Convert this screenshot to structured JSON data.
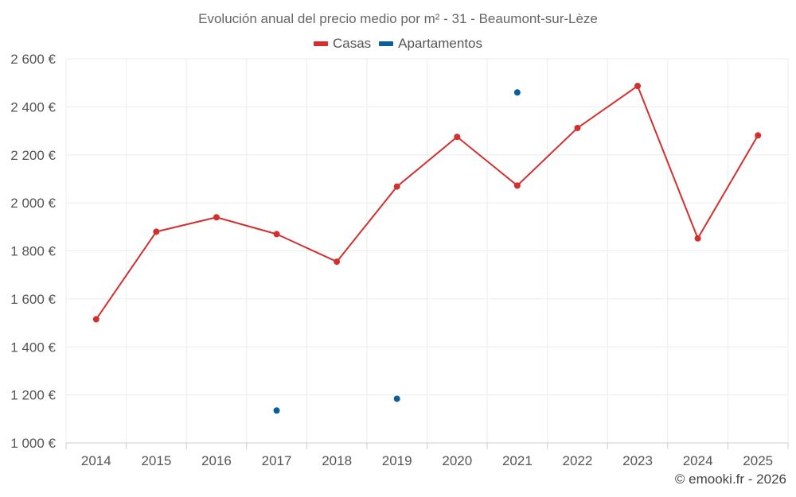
{
  "chart_data": {
    "type": "line",
    "title": "Evolución anual del precio medio por m² - 31 - Beaumont-sur-Lèze",
    "xlabel": "",
    "ylabel": "",
    "categories": [
      "2014",
      "2015",
      "2016",
      "2017",
      "2018",
      "2019",
      "2020",
      "2021",
      "2022",
      "2023",
      "2024",
      "2025"
    ],
    "ylim": [
      1000,
      2600
    ],
    "yticks": [
      1000,
      1200,
      1400,
      1600,
      1800,
      2000,
      2200,
      2400,
      2600
    ],
    "ytick_labels": [
      "1 000 €",
      "1 200 €",
      "1 400 €",
      "1 600 €",
      "1 800 €",
      "2 000 €",
      "2 200 €",
      "2 400 €",
      "2 600 €"
    ],
    "grid": true,
    "legend_position": "top",
    "series": [
      {
        "name": "Casas",
        "color": "#d32f2f",
        "line": true,
        "values": [
          1515,
          1880,
          1940,
          1870,
          1755,
          2068,
          2275,
          2072,
          2312,
          2487,
          1852,
          2281
        ]
      },
      {
        "name": "Apartamentos",
        "color": "#0a5e9a",
        "line": false,
        "values": [
          null,
          null,
          null,
          1135,
          null,
          1184,
          null,
          2460,
          null,
          null,
          null,
          null
        ]
      }
    ]
  },
  "footer": {
    "credit": "© emooki.fr - 2026"
  }
}
